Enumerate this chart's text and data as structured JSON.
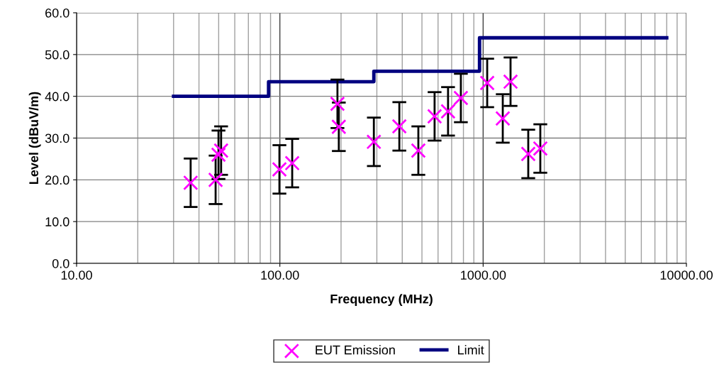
{
  "chart_data": {
    "type": "scatter",
    "xlabel": "Frequency (MHz)",
    "ylabel": "Level (dBuV/m)",
    "log": "x",
    "grid": true,
    "legend": "bottom",
    "xlim": [
      10,
      10000
    ],
    "xticks": [
      {
        "value": 10,
        "label": "10.00"
      },
      {
        "value": 100,
        "label": "100.00"
      },
      {
        "value": 1000,
        "label": "1000.00"
      },
      {
        "value": 10000,
        "label": "10000.00"
      }
    ],
    "ylim": [
      0,
      60
    ],
    "yticks": [
      {
        "value": 0,
        "label": "0.0"
      },
      {
        "value": 10,
        "label": "10.0"
      },
      {
        "value": 20,
        "label": "20.0"
      },
      {
        "value": 30,
        "label": "30.0"
      },
      {
        "value": 40,
        "label": "40.0"
      },
      {
        "value": 50,
        "label": "50.0"
      },
      {
        "value": 60,
        "label": "60.0"
      }
    ],
    "series": [
      {
        "name": "EUT Emission",
        "marker": "cross",
        "color": "#ff00ff",
        "x": [
          36.4,
          48.3,
          49.9,
          51.4,
          99.5,
          115,
          192,
          195,
          290,
          387,
          480,
          577,
          672,
          777,
          1047,
          1249,
          1364,
          1667,
          1911
        ],
        "values": [
          19.3,
          20.0,
          26.0,
          27.0,
          22.5,
          24.0,
          38.2,
          32.7,
          29.1,
          32.8,
          27.0,
          35.2,
          36.4,
          39.6,
          43.2,
          34.7,
          43.5,
          26.2,
          27.5
        ],
        "errors": [
          5.8,
          5.8,
          5.8,
          5.8,
          5.8,
          5.8,
          5.8,
          5.8,
          5.8,
          5.8,
          5.8,
          5.8,
          5.8,
          5.8,
          5.8,
          5.8,
          5.8,
          5.8,
          5.8
        ]
      },
      {
        "name": "Limit",
        "type": "line",
        "marker": "none",
        "line_style": "solid",
        "color": "#000080",
        "x": [
          30,
          88,
          88,
          290,
          290,
          960,
          960,
          8000
        ],
        "values": [
          40,
          40,
          43.5,
          43.5,
          46,
          46,
          54,
          54
        ]
      }
    ]
  }
}
